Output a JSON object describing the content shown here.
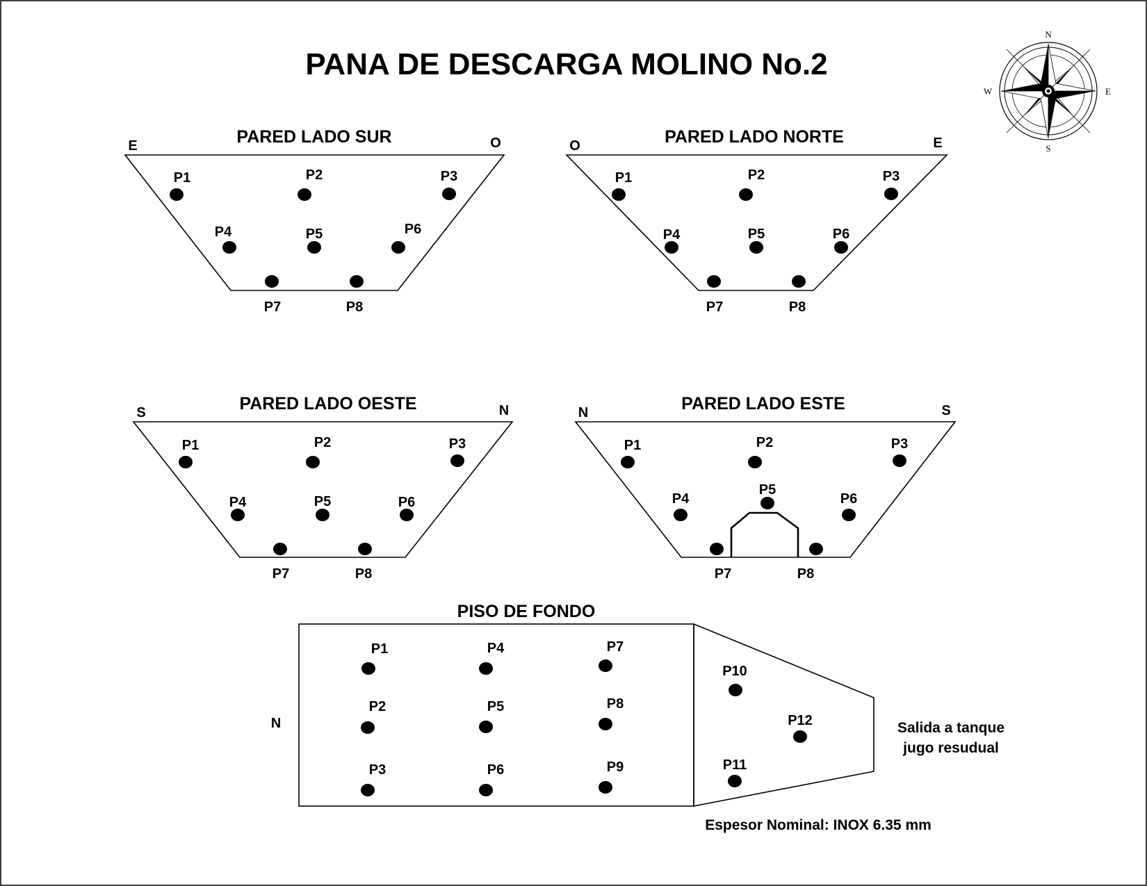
{
  "title": "PANA DE DESCARGA MOLINO No.2",
  "compass": {
    "n": "N",
    "s": "S",
    "e": "E",
    "w": "W"
  },
  "walls": [
    {
      "key": "sur",
      "heading": "PARED LADO SUR",
      "left_dir": "E",
      "right_dir": "O",
      "points": [
        "P1",
        "P2",
        "P3",
        "P4",
        "P5",
        "P6",
        "P7",
        "P8"
      ]
    },
    {
      "key": "norte",
      "heading": "PARED LADO NORTE",
      "left_dir": "O",
      "right_dir": "E",
      "points": [
        "P1",
        "P2",
        "P3",
        "P4",
        "P5",
        "P6",
        "P7",
        "P8"
      ]
    },
    {
      "key": "oeste",
      "heading": "PARED LADO OESTE",
      "left_dir": "S",
      "right_dir": "N",
      "points": [
        "P1",
        "P2",
        "P3",
        "P4",
        "P5",
        "P6",
        "P7",
        "P8"
      ]
    },
    {
      "key": "este",
      "heading": "PARED LADO ESTE",
      "left_dir": "N",
      "right_dir": "S",
      "points": [
        "P1",
        "P2",
        "P3",
        "P4",
        "P5",
        "P6",
        "P7",
        "P8"
      ]
    }
  ],
  "floor": {
    "heading": "PISO DE FONDO",
    "side_dir": "N",
    "points": [
      "P1",
      "P2",
      "P3",
      "P4",
      "P5",
      "P6",
      "P7",
      "P8",
      "P9",
      "P10",
      "P11",
      "P12"
    ],
    "outlet_note_line1": "Salida a tanque",
    "outlet_note_line2": "jugo resudual"
  },
  "thickness_note": "Espesor Nominal: INOX 6.35 mm"
}
